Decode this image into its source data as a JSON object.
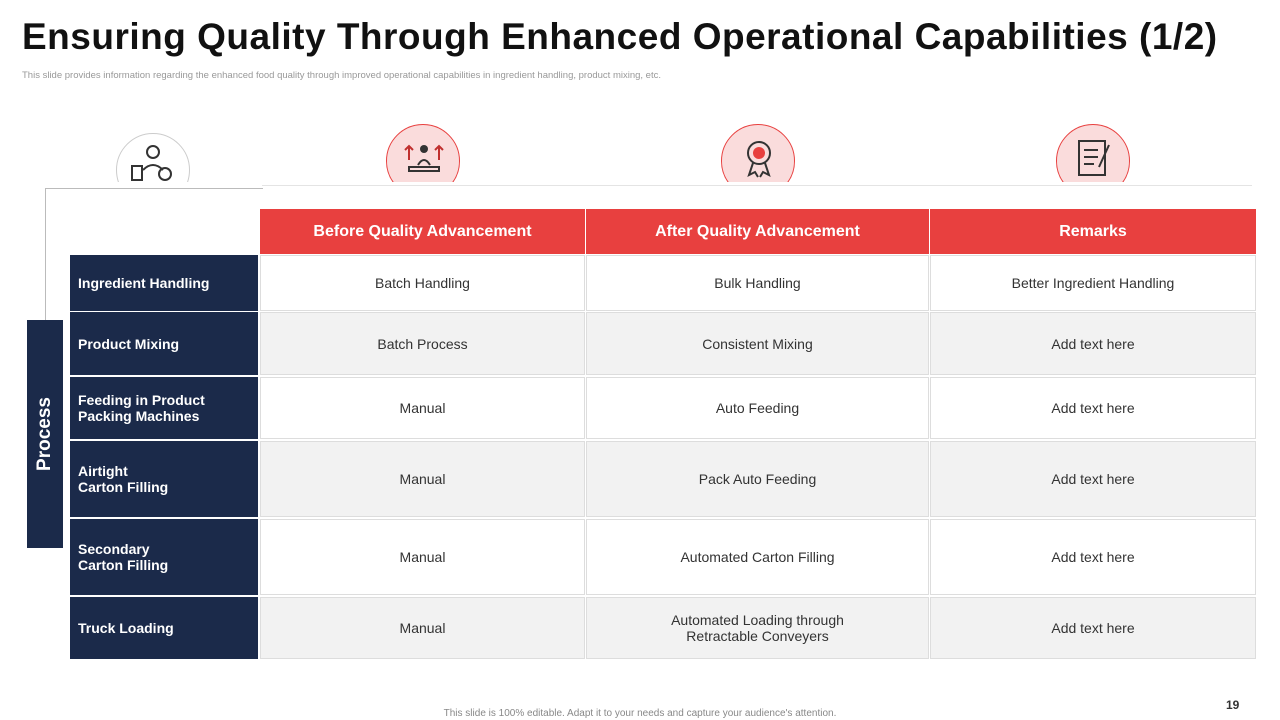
{
  "header": {
    "title": "Ensuring Quality Through Enhanced Operational Capabilities (1/2)",
    "subtitle": "This slide provides information regarding the enhanced food quality through improved operational capabilities in ingredient handling, product mixing, etc."
  },
  "side_label": "Process",
  "table": {
    "columns": [
      "Before Quality Advancement",
      "After Quality Advancement",
      "Remarks"
    ],
    "rows": [
      [
        "Ingredient Handling",
        "Batch Handling",
        "Bulk Handling",
        "Better Ingredient Handling"
      ],
      [
        "Product Mixing",
        "Batch Process",
        "Consistent Mixing",
        "Add text here"
      ],
      [
        "Feeding in Product\nPacking Machines",
        "Manual",
        "Auto Feeding",
        "Add text here"
      ],
      [
        "Airtight\nCarton Filling",
        "Manual",
        "Pack Auto Feeding",
        "Add text here"
      ],
      [
        "Secondary\nCarton Filling",
        "Manual",
        "Automated Carton Filling",
        "Add text here"
      ],
      [
        "Truck Loading",
        "Manual",
        "Automated Loading through\nRetractable Conveyers",
        "Add text here"
      ]
    ]
  },
  "footer": {
    "note": "This slide is 100% editable. Adapt it to your needs and capture your audience's attention.",
    "page_number": "19"
  }
}
